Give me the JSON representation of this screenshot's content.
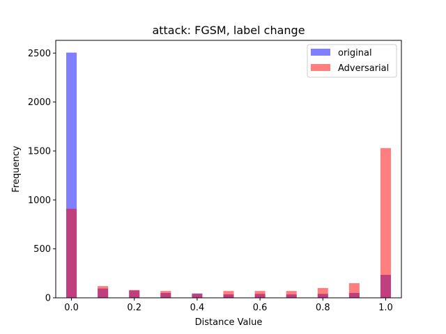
{
  "chart_data": {
    "type": "bar",
    "title": "attack: FGSM, label change",
    "xlabel": "Distance Value",
    "ylabel": "Frequency",
    "xlim": [
      -0.05,
      1.05
    ],
    "ylim": [
      0,
      2630
    ],
    "xticks": [
      0.0,
      0.2,
      0.4,
      0.6,
      0.8,
      1.0
    ],
    "xtick_labels": [
      "0.0",
      "0.2",
      "0.4",
      "0.6",
      "0.8",
      "1.0"
    ],
    "yticks": [
      0,
      500,
      1000,
      1500,
      2000,
      2500
    ],
    "ytick_labels": [
      "0",
      "500",
      "1000",
      "1500",
      "2000",
      "2500"
    ],
    "grid": false,
    "legend_position": "top-right",
    "bin_width": 0.0333,
    "series": [
      {
        "name": "original",
        "color": "#0000ff",
        "opacity": 0.5,
        "x": [
          0.0,
          0.1,
          0.2,
          0.3,
          0.4,
          0.5,
          0.6,
          0.7,
          0.8,
          0.9,
          1.0
        ],
        "values": [
          2505,
          95,
          75,
          50,
          45,
          35,
          40,
          35,
          40,
          50,
          235
        ]
      },
      {
        "name": "Adversarial",
        "color": "#ff0000",
        "opacity": 0.5,
        "x": [
          0.0,
          0.1,
          0.2,
          0.3,
          0.4,
          0.5,
          0.6,
          0.7,
          0.8,
          0.9,
          1.0
        ],
        "values": [
          910,
          120,
          80,
          70,
          40,
          70,
          70,
          70,
          100,
          150,
          1530
        ]
      }
    ]
  }
}
